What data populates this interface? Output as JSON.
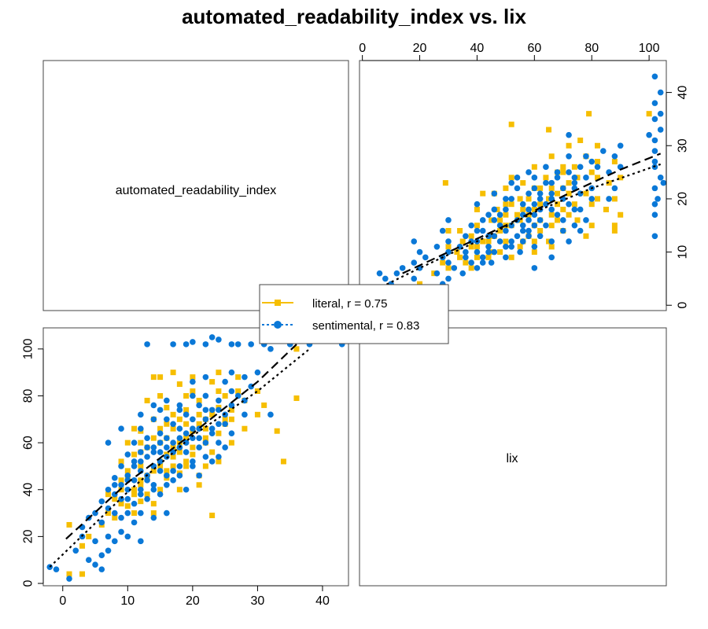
{
  "title": "automated_readability_index vs. lix",
  "colors": {
    "literal": "#f6be00",
    "sentimental": "#0a78d7",
    "fit": "#000000"
  },
  "chart_data": {
    "type": "scatter",
    "title": "automated_readability_index vs. lix",
    "variables": [
      "automated_readability_index",
      "lix"
    ],
    "panels": [
      {
        "position": "top-left",
        "kind": "label",
        "text": "automated_readability_index"
      },
      {
        "position": "bottom-right",
        "kind": "label",
        "text": "lix"
      },
      {
        "position": "top-right",
        "kind": "scatter",
        "x_variable": "lix",
        "y_variable": "automated_readability_index",
        "xlim": [
          -1,
          106
        ],
        "ylim": [
          -1,
          46
        ],
        "x_ticks": [
          0,
          20,
          40,
          60,
          80,
          100
        ],
        "y_ticks": [
          0,
          10,
          20,
          30,
          40
        ],
        "x_axis_side": "top",
        "y_axis_side": "right"
      },
      {
        "position": "bottom-left",
        "kind": "scatter",
        "x_variable": "automated_readability_index",
        "y_variable": "lix",
        "xlim": [
          -3,
          44
        ],
        "ylim": [
          -1,
          109
        ],
        "x_ticks": [
          0,
          10,
          20,
          30,
          40
        ],
        "y_ticks": [
          0,
          20,
          40,
          60,
          80,
          100
        ],
        "x_axis_side": "bottom",
        "y_axis_side": "left"
      }
    ],
    "series": [
      {
        "name": "literal",
        "label": "literal, r = 0.75",
        "marker": "square",
        "line": "dashed",
        "fit_lix_vs_ari": [
          [
            14,
            6
          ],
          [
            30,
            10
          ],
          [
            50,
            15
          ],
          [
            70,
            20.5
          ],
          [
            90,
            25.5
          ],
          [
            104,
            28.5
          ]
        ],
        "fit_ari_vs_lix": [
          [
            0.5,
            19
          ],
          [
            10,
            43
          ],
          [
            20,
            64
          ],
          [
            30,
            86
          ],
          [
            36,
            102
          ]
        ],
        "points": [
          [
            4,
            20
          ],
          [
            7,
            30
          ],
          [
            8,
            36
          ],
          [
            9,
            40
          ],
          [
            10,
            45
          ],
          [
            10,
            60
          ],
          [
            11,
            38
          ],
          [
            11,
            55
          ],
          [
            12,
            42
          ],
          [
            12,
            50
          ],
          [
            12,
            65
          ],
          [
            13,
            45
          ],
          [
            13,
            58
          ],
          [
            14,
            48
          ],
          [
            14,
            70
          ],
          [
            15,
            52
          ],
          [
            15,
            60
          ],
          [
            15,
            88
          ],
          [
            16,
            55
          ],
          [
            16,
            62
          ],
          [
            16,
            75
          ],
          [
            17,
            50
          ],
          [
            17,
            58
          ],
          [
            17,
            66
          ],
          [
            18,
            60
          ],
          [
            18,
            70
          ],
          [
            18,
            85
          ],
          [
            19,
            62
          ],
          [
            19,
            74
          ],
          [
            20,
            65
          ],
          [
            20,
            55
          ],
          [
            21,
            68
          ],
          [
            21,
            78
          ],
          [
            22,
            70
          ],
          [
            22,
            60
          ],
          [
            23,
            72
          ],
          [
            23,
            29
          ],
          [
            24,
            75
          ],
          [
            25,
            68
          ],
          [
            25,
            80
          ],
          [
            26,
            74
          ],
          [
            27,
            82
          ],
          [
            28,
            78
          ],
          [
            30,
            82
          ],
          [
            33,
            65
          ],
          [
            34,
            52
          ],
          [
            36,
            79
          ],
          [
            36,
            100
          ],
          [
            10,
            33
          ],
          [
            13,
            38
          ],
          [
            15,
            40
          ],
          [
            16,
            45
          ],
          [
            18,
            47
          ],
          [
            19,
            52
          ],
          [
            21,
            42
          ],
          [
            22,
            50
          ],
          [
            8,
            28
          ],
          [
            6,
            25
          ],
          [
            1,
            25
          ],
          [
            3,
            16
          ],
          [
            1,
            4
          ],
          [
            3,
            4
          ],
          [
            14,
            30
          ],
          [
            12,
            35
          ],
          [
            20,
            88
          ],
          [
            17,
            90
          ],
          [
            15,
            80
          ],
          [
            24,
            90
          ],
          [
            9,
            52
          ],
          [
            11,
            66
          ],
          [
            13,
            78
          ],
          [
            17,
            72
          ],
          [
            20,
            82
          ],
          [
            23,
            86
          ],
          [
            27,
            88
          ],
          [
            14,
            88
          ],
          [
            18,
            56
          ],
          [
            19,
            68
          ],
          [
            22,
            66
          ],
          [
            24,
            64
          ],
          [
            26,
            70
          ],
          [
            10,
            48
          ],
          [
            12,
            56
          ],
          [
            14,
            62
          ],
          [
            16,
            68
          ],
          [
            21,
            72
          ],
          [
            12,
            44
          ],
          [
            15,
            50
          ],
          [
            17,
            54
          ],
          [
            20,
            58
          ],
          [
            22,
            62
          ],
          [
            25,
            70
          ],
          [
            11,
            40
          ],
          [
            13,
            46
          ],
          [
            16,
            48
          ],
          [
            19,
            50
          ],
          [
            23,
            56
          ],
          [
            9,
            34
          ],
          [
            11,
            30
          ],
          [
            14,
            34
          ],
          [
            18,
            40
          ],
          [
            21,
            46
          ],
          [
            24,
            52
          ],
          [
            26,
            60
          ],
          [
            28,
            66
          ],
          [
            30,
            72
          ],
          [
            31,
            76
          ],
          [
            7,
            38
          ],
          [
            9,
            44
          ],
          [
            12,
            60
          ],
          [
            15,
            66
          ],
          [
            19,
            80
          ],
          [
            24,
            82
          ]
        ]
      },
      {
        "name": "sentimental",
        "label": "sentimental, r = 0.83",
        "marker": "circle",
        "line": "dotted",
        "fit_lix_vs_ari": [
          [
            5,
            3
          ],
          [
            20,
            7
          ],
          [
            40,
            12
          ],
          [
            60,
            17.5
          ],
          [
            80,
            22
          ],
          [
            104,
            26.5
          ]
        ],
        "fit_ari_vs_lix": [
          [
            -2,
            7
          ],
          [
            10,
            39
          ],
          [
            20,
            63
          ],
          [
            30,
            82
          ],
          [
            38,
            100
          ]
        ],
        "points": [
          [
            -2,
            7
          ],
          [
            -1,
            6
          ],
          [
            1,
            2
          ],
          [
            2,
            14
          ],
          [
            3,
            20
          ],
          [
            3,
            24
          ],
          [
            4,
            10
          ],
          [
            4,
            28
          ],
          [
            5,
            8
          ],
          [
            5,
            18
          ],
          [
            5,
            30
          ],
          [
            6,
            12
          ],
          [
            6,
            26
          ],
          [
            6,
            35
          ],
          [
            7,
            20
          ],
          [
            7,
            32
          ],
          [
            7,
            40
          ],
          [
            8,
            18
          ],
          [
            8,
            30
          ],
          [
            8,
            38
          ],
          [
            8,
            45
          ],
          [
            9,
            22
          ],
          [
            9,
            36
          ],
          [
            9,
            42
          ],
          [
            9,
            50
          ],
          [
            10,
            30
          ],
          [
            10,
            40
          ],
          [
            10,
            46
          ],
          [
            10,
            55
          ],
          [
            11,
            34
          ],
          [
            11,
            44
          ],
          [
            11,
            50
          ],
          [
            11,
            60
          ],
          [
            12,
            30
          ],
          [
            12,
            40
          ],
          [
            12,
            48
          ],
          [
            12,
            56
          ],
          [
            12,
            66
          ],
          [
            13,
            36
          ],
          [
            13,
            46
          ],
          [
            13,
            54
          ],
          [
            13,
            62
          ],
          [
            13,
            102
          ],
          [
            14,
            40
          ],
          [
            14,
            50
          ],
          [
            14,
            58
          ],
          [
            14,
            70
          ],
          [
            15,
            38
          ],
          [
            15,
            48
          ],
          [
            15,
            56
          ],
          [
            15,
            64
          ],
          [
            15,
            74
          ],
          [
            16,
            46
          ],
          [
            16,
            54
          ],
          [
            16,
            62
          ],
          [
            16,
            78
          ],
          [
            17,
            44
          ],
          [
            17,
            60
          ],
          [
            17,
            68
          ],
          [
            17,
            102
          ],
          [
            18,
            50
          ],
          [
            18,
            58
          ],
          [
            18,
            66
          ],
          [
            18,
            76
          ],
          [
            19,
            56
          ],
          [
            19,
            64
          ],
          [
            19,
            72
          ],
          [
            19,
            102
          ],
          [
            20,
            52
          ],
          [
            20,
            62
          ],
          [
            20,
            70
          ],
          [
            20,
            80
          ],
          [
            20,
            103
          ],
          [
            21,
            58
          ],
          [
            21,
            66
          ],
          [
            21,
            76
          ],
          [
            22,
            60
          ],
          [
            22,
            70
          ],
          [
            22,
            80
          ],
          [
            22,
            102
          ],
          [
            23,
            64
          ],
          [
            23,
            74
          ],
          [
            23,
            105
          ],
          [
            24,
            54
          ],
          [
            24,
            68
          ],
          [
            24,
            78
          ],
          [
            24,
            104
          ],
          [
            25,
            58
          ],
          [
            25,
            72
          ],
          [
            25,
            86
          ],
          [
            26,
            76
          ],
          [
            26,
            90
          ],
          [
            26,
            102
          ],
          [
            27,
            80
          ],
          [
            27,
            102
          ],
          [
            28,
            88
          ],
          [
            29,
            84
          ],
          [
            29,
            102
          ],
          [
            30,
            90
          ],
          [
            31,
            102
          ],
          [
            32,
            100
          ],
          [
            33,
            104
          ],
          [
            35,
            102
          ],
          [
            36,
            104
          ],
          [
            38,
            102
          ],
          [
            40,
            104
          ],
          [
            43,
            102
          ],
          [
            32,
            72
          ],
          [
            10,
            20
          ],
          [
            11,
            26
          ],
          [
            12,
            18
          ],
          [
            14,
            28
          ],
          [
            16,
            30
          ],
          [
            9,
            28
          ],
          [
            7,
            14
          ],
          [
            6,
            6
          ],
          [
            7,
            60
          ],
          [
            9,
            66
          ],
          [
            12,
            72
          ],
          [
            14,
            76
          ],
          [
            16,
            70
          ],
          [
            18,
            74
          ],
          [
            20,
            86
          ],
          [
            22,
            88
          ],
          [
            19,
            40
          ],
          [
            21,
            46
          ],
          [
            23,
            52
          ],
          [
            13,
            44
          ],
          [
            15,
            52
          ],
          [
            17,
            48
          ],
          [
            11,
            52
          ],
          [
            13,
            58
          ],
          [
            15,
            60
          ],
          [
            17,
            56
          ],
          [
            19,
            60
          ],
          [
            21,
            62
          ],
          [
            23,
            66
          ],
          [
            25,
            68
          ],
          [
            10,
            36
          ],
          [
            12,
            38
          ],
          [
            14,
            42
          ],
          [
            16,
            42
          ],
          [
            18,
            46
          ],
          [
            20,
            50
          ],
          [
            22,
            54
          ],
          [
            24,
            60
          ],
          [
            26,
            64
          ],
          [
            28,
            72
          ],
          [
            8,
            42
          ],
          [
            10,
            44
          ],
          [
            12,
            52
          ],
          [
            14,
            56
          ],
          [
            16,
            58
          ],
          [
            18,
            62
          ],
          [
            20,
            66
          ],
          [
            22,
            74
          ],
          [
            24,
            74
          ],
          [
            26,
            82
          ],
          [
            28,
            78
          ]
        ]
      }
    ],
    "legend": {
      "placement": "center",
      "entries": [
        "literal, r = 0.75",
        "sentimental, r = 0.83"
      ]
    }
  }
}
